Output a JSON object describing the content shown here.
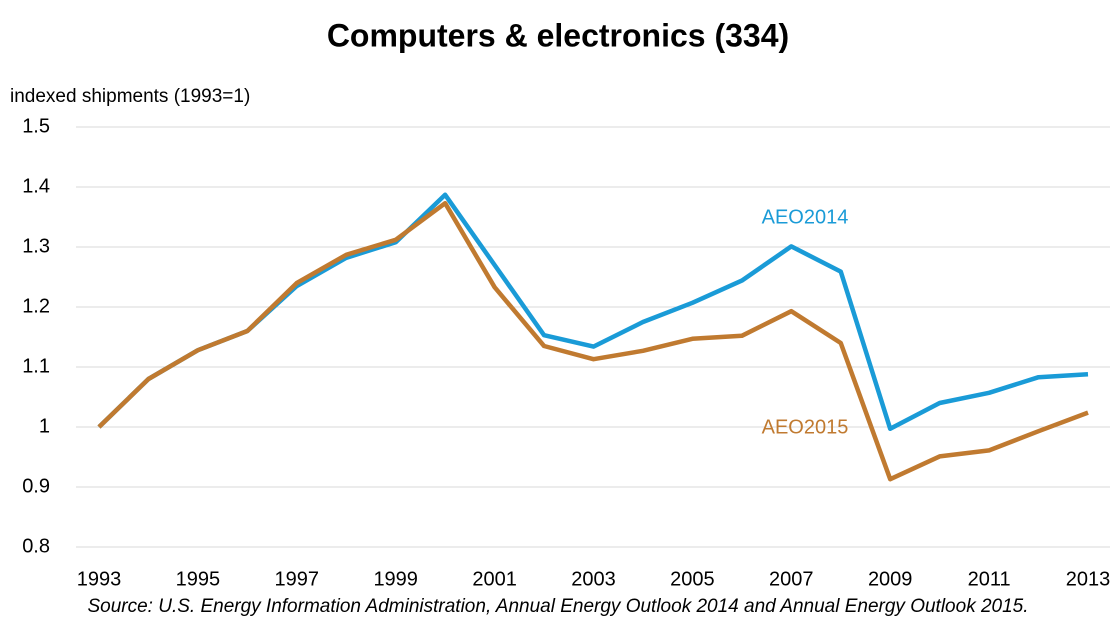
{
  "chart_data": {
    "type": "line",
    "title": "Computers & electronics (334)",
    "y_label": "indexed shipments (1993=1)",
    "source": "Source: U.S. Energy Information Administration, Annual Energy Outlook 2014 and Annual Energy Outlook 2015.",
    "x": [
      1993,
      1994,
      1995,
      1996,
      1997,
      1998,
      1999,
      2000,
      2001,
      2002,
      2003,
      2004,
      2005,
      2006,
      2007,
      2008,
      2009,
      2010,
      2011,
      2012,
      2013
    ],
    "series": [
      {
        "name": "AEO2014",
        "color": "#1a9bd7",
        "values": [
          1.0,
          1.08,
          1.128,
          1.16,
          1.235,
          1.282,
          1.308,
          1.387,
          1.27,
          1.153,
          1.134,
          1.175,
          1.207,
          1.244,
          1.301,
          1.259,
          0.997,
          1.04,
          1.057,
          1.083,
          1.088
        ]
      },
      {
        "name": "AEO2015",
        "color": "#c07a30",
        "values": [
          1.0,
          1.08,
          1.128,
          1.16,
          1.24,
          1.287,
          1.312,
          1.373,
          1.233,
          1.135,
          1.113,
          1.127,
          1.147,
          1.152,
          1.193,
          1.14,
          0.913,
          0.951,
          0.961,
          0.993,
          1.024
        ]
      }
    ],
    "xlim": [
      1993,
      2013
    ],
    "xticks": [
      1993,
      1995,
      1997,
      1999,
      2001,
      2003,
      2005,
      2007,
      2009,
      2011,
      2013
    ],
    "ylim": [
      0.8,
      1.5
    ],
    "yticks": [
      0.8,
      0.9,
      1,
      1.1,
      1.2,
      1.3,
      1.4,
      1.5
    ],
    "grid": true
  }
}
